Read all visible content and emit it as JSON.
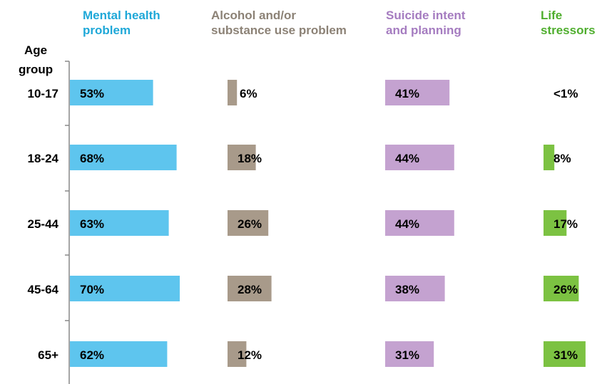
{
  "chart_data": {
    "type": "bar",
    "ylabel": "Age group",
    "categories": [
      "10-17",
      "18-24",
      "25-44",
      "45-64",
      "65+"
    ],
    "series": [
      {
        "name": "Mental health problem",
        "color": "#5ec5ee",
        "values": [
          53,
          68,
          63,
          70,
          62
        ],
        "labels": [
          "53%",
          "68%",
          "63%",
          "70%",
          "62%"
        ]
      },
      {
        "name": "Alcohol and/or substance use problem",
        "color": "#a89a8a",
        "values": [
          6,
          18,
          26,
          28,
          12
        ],
        "labels": [
          "6%",
          "18%",
          "26%",
          "28%",
          "12%"
        ]
      },
      {
        "name": "Suicide intent and planning",
        "color": "#c4a2d0",
        "values": [
          41,
          44,
          44,
          38,
          31
        ],
        "labels": [
          "41%",
          "44%",
          "44%",
          "38%",
          "31%"
        ]
      },
      {
        "name": "Life stressors",
        "color": "#7cc242",
        "values": [
          0.5,
          8,
          17,
          26,
          31
        ],
        "labels": [
          "<1%",
          "8%",
          "17%",
          "26%",
          "31%"
        ]
      }
    ],
    "header_colors": [
      "#1fa8d8",
      "#8c8276",
      "#a57cc0",
      "#4fae2e"
    ]
  }
}
